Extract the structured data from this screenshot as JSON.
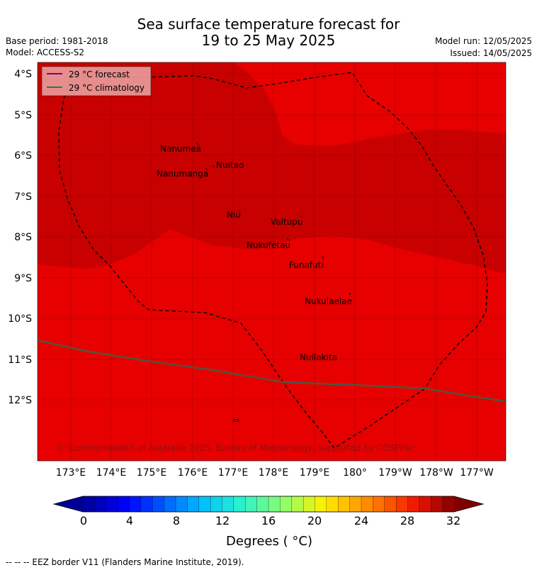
{
  "header": {
    "title_line1": "Sea surface temperature forecast for",
    "title_line2": "19 to 25 May 2025",
    "base_period": "Base period: 1981-2018",
    "model": "Model: ACCESS-S2",
    "model_run": "Model run: 12/05/2025",
    "issued": "Issued: 14/05/2025"
  },
  "legend": {
    "forecast_label": "29 °C  forecast",
    "climatology_label": "29 °C  climatology",
    "forecast_color": "#800080",
    "climatology_color": "#2e7d32"
  },
  "map": {
    "lat_labels": [
      "4°S",
      "5°S",
      "6°S",
      "7°S",
      "8°S",
      "9°S",
      "10°S",
      "11°S",
      "12°S"
    ],
    "lon_labels": [
      "173°E",
      "174°E",
      "175°E",
      "176°E",
      "177°E",
      "178°E",
      "179°E",
      "180°",
      "179°W",
      "178°W",
      "177°W"
    ],
    "islands": [
      "Nanumea",
      "Nuitao",
      "Nanumanga",
      "Niu",
      "Vaitupu",
      "Nukufetau",
      "Funafuti",
      "Nukulaelae",
      "Nuilakita"
    ],
    "copyright": "© Commonwealth of Australia 2025, Bureau of Meteorology, supported by COSPPac",
    "colors": {
      "warm_29_30": "#e60000",
      "warm_30_31": "#c80000"
    }
  },
  "colorbar": {
    "ticks": [
      "0",
      "4",
      "8",
      "12",
      "16",
      "20",
      "24",
      "28",
      "32"
    ],
    "label": "Degrees ( °C)"
  },
  "footer": {
    "eez_text": "--  --  -- EEZ border V11 (Flanders Marine Institute, 2019)."
  }
}
